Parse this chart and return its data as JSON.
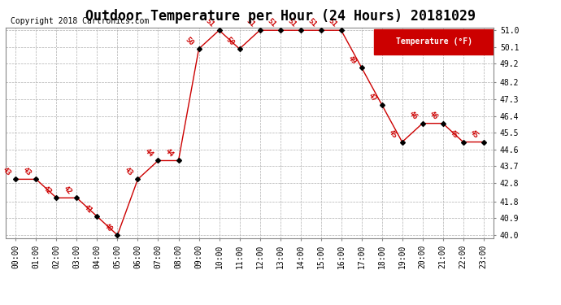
{
  "title": "Outdoor Temperature per Hour (24 Hours) 20181029",
  "copyright": "Copyright 2018 Cartronics.com",
  "legend_label": "Temperature (°F)",
  "hours": [
    "00:00",
    "01:00",
    "02:00",
    "03:00",
    "04:00",
    "05:00",
    "06:00",
    "07:00",
    "08:00",
    "09:00",
    "10:00",
    "11:00",
    "12:00",
    "13:00",
    "14:00",
    "15:00",
    "16:00",
    "17:00",
    "18:00",
    "19:00",
    "20:00",
    "21:00",
    "22:00",
    "23:00"
  ],
  "temps": [
    43,
    43,
    42,
    42,
    41,
    40,
    43,
    44,
    44,
    50,
    51,
    50,
    51,
    51,
    51,
    51,
    51,
    49,
    47,
    45,
    46,
    46,
    45,
    45
  ],
  "ylim_min": 40.0,
  "ylim_max": 51.0,
  "yticks": [
    40.0,
    40.9,
    41.8,
    42.8,
    43.7,
    44.6,
    45.5,
    46.4,
    47.3,
    48.2,
    49.2,
    50.1,
    51.0
  ],
  "line_color": "#cc0000",
  "marker_color": "#000000",
  "label_color": "#cc0000",
  "bg_color": "#ffffff",
  "grid_color": "#b0b0b0",
  "legend_bg": "#cc0000",
  "legend_fg": "#ffffff",
  "title_fontsize": 12,
  "annot_fontsize": 6.5,
  "tick_fontsize": 7,
  "copyright_fontsize": 7
}
